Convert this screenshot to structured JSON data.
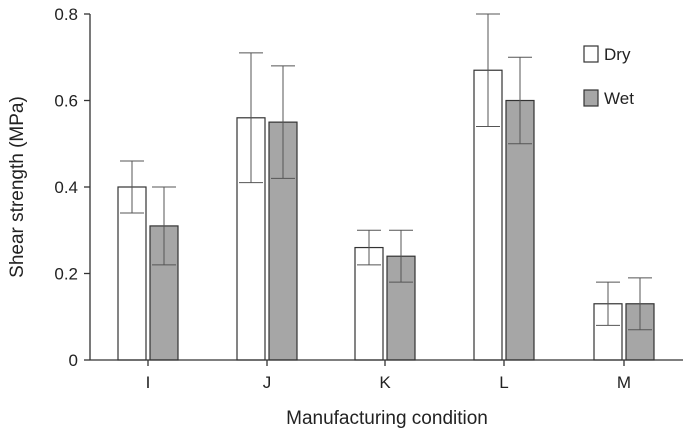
{
  "chart_data": {
    "type": "bar",
    "title": "",
    "xlabel": "Manufacturing condition",
    "ylabel": "Shear strength (MPa)",
    "categories": [
      "I",
      "J",
      "K",
      "L",
      "M"
    ],
    "ylim": [
      0,
      0.8
    ],
    "yticks": [
      "0",
      "0.2",
      "0.4",
      "0.6",
      "0.8"
    ],
    "ytick_values": [
      0,
      0.2,
      0.4,
      0.6,
      0.8
    ],
    "grid": false,
    "legend_position": "top-right",
    "series": [
      {
        "name": "Dry",
        "color": "#ffffff",
        "values": [
          0.4,
          0.56,
          0.26,
          0.67,
          0.13
        ],
        "error_low": [
          0.34,
          0.41,
          0.22,
          0.54,
          0.08
        ],
        "error_high": [
          0.46,
          0.71,
          0.3,
          0.8,
          0.18
        ]
      },
      {
        "name": "Wet",
        "color": "#a6a6a6",
        "values": [
          0.31,
          0.55,
          0.24,
          0.6,
          0.13
        ],
        "error_low": [
          0.22,
          0.42,
          0.18,
          0.5,
          0.07
        ],
        "error_high": [
          0.4,
          0.68,
          0.3,
          0.7,
          0.19
        ]
      }
    ]
  }
}
